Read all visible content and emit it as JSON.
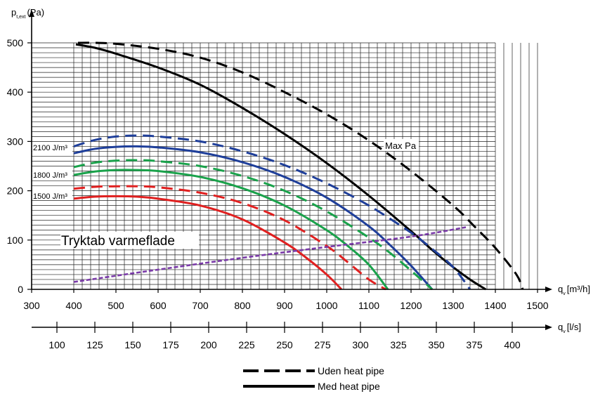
{
  "chart_data": {
    "type": "line",
    "y_axis": {
      "label_main": "p",
      "label_sub": "t,ext",
      "label_unit": "(Pa)",
      "range": [
        0,
        500
      ],
      "ticks": [
        0,
        100,
        200,
        300,
        400,
        500
      ]
    },
    "x_axis": {
      "label_main": "q",
      "label_sub": "v",
      "label_unit": "[m³/h]",
      "range": [
        300,
        1500
      ],
      "ticks": [
        300,
        400,
        500,
        600,
        700,
        800,
        900,
        1000,
        1100,
        1200,
        1300,
        1400,
        1500
      ]
    },
    "x2_axis": {
      "label_main": "q",
      "label_sub": "v",
      "label_unit": "[l/s]",
      "ticks": [
        100,
        125,
        150,
        175,
        200,
        225,
        250,
        275,
        300,
        325,
        350,
        375,
        400
      ]
    },
    "grid": true,
    "series": [
      {
        "name": "Max Pa",
        "group": "Uden heat pipe",
        "color": "#000000",
        "style": "dashed",
        "x": [
          410,
          450,
          500,
          600,
          700,
          800,
          900,
          1000,
          1100,
          1200,
          1300,
          1350,
          1400,
          1450,
          1465
        ],
        "y": [
          500,
          500,
          498,
          488,
          470,
          440,
          400,
          355,
          302,
          240,
          170,
          128,
          84,
          30,
          0
        ]
      },
      {
        "name": "Max Pa",
        "group": "Med heat pipe",
        "color": "#000000",
        "style": "solid",
        "x": [
          405,
          450,
          500,
          600,
          700,
          800,
          900,
          1000,
          1100,
          1200,
          1250,
          1300,
          1340,
          1377
        ],
        "y": [
          497,
          490,
          478,
          450,
          415,
          368,
          315,
          256,
          190,
          118,
          80,
          45,
          20,
          0
        ]
      },
      {
        "name": "2100 J/m³",
        "group": "Uden heat pipe",
        "color": "#1f3f9a",
        "style": "dashed",
        "x": [
          400,
          450,
          500,
          550,
          600,
          700,
          800,
          900,
          1000,
          1100,
          1200,
          1250,
          1300,
          1340
        ],
        "y": [
          290,
          303,
          310,
          312,
          310,
          300,
          280,
          252,
          215,
          170,
          115,
          82,
          45,
          0
        ]
      },
      {
        "name": "2100 J/m³",
        "group": "Med heat pipe",
        "color": "#1f3f9a",
        "style": "solid",
        "x": [
          400,
          450,
          500,
          550,
          600,
          700,
          800,
          900,
          1000,
          1100,
          1150,
          1200,
          1250
        ],
        "y": [
          276,
          285,
          289,
          290,
          288,
          278,
          258,
          228,
          186,
          128,
          90,
          48,
          0
        ]
      },
      {
        "name": "1800 J/m³",
        "group": "Uden heat pipe",
        "color": "#1aa24b",
        "style": "dashed",
        "x": [
          400,
          450,
          500,
          550,
          600,
          700,
          800,
          900,
          1000,
          1100,
          1150,
          1200,
          1250
        ],
        "y": [
          248,
          257,
          261,
          262,
          260,
          250,
          230,
          200,
          158,
          105,
          74,
          38,
          0
        ]
      },
      {
        "name": "1800 J/m³",
        "group": "Med heat pipe",
        "color": "#1aa24b",
        "style": "solid",
        "x": [
          400,
          450,
          500,
          550,
          600,
          700,
          800,
          900,
          1000,
          1050,
          1100,
          1145
        ],
        "y": [
          232,
          239,
          242,
          242,
          240,
          228,
          205,
          170,
          120,
          88,
          50,
          0
        ]
      },
      {
        "name": "1500 J/m³",
        "group": "Uden heat pipe",
        "color": "#e02020",
        "style": "dashed",
        "x": [
          400,
          450,
          500,
          550,
          600,
          700,
          800,
          900,
          1000,
          1050,
          1100,
          1140
        ],
        "y": [
          204,
          208,
          209,
          209,
          207,
          196,
          175,
          140,
          88,
          55,
          20,
          0
        ]
      },
      {
        "name": "1500 J/m³",
        "group": "Med heat pipe",
        "color": "#e02020",
        "style": "solid",
        "x": [
          400,
          450,
          500,
          550,
          600,
          700,
          800,
          900,
          950,
          1000,
          1035
        ],
        "y": [
          184,
          188,
          189,
          188,
          184,
          170,
          142,
          95,
          65,
          30,
          0
        ]
      },
      {
        "name": "Tryktab varmeflade",
        "group": "",
        "color": "#7a3aa8",
        "style": "dotted",
        "x": [
          400,
          600,
          800,
          1000,
          1200,
          1330
        ],
        "y": [
          15,
          40,
          64,
          86,
          107,
          126
        ]
      }
    ],
    "annotations": {
      "max_pa": "Max Pa",
      "j2100": "2100 J/m³",
      "j1800": "1800 J/m³",
      "j1500": "1500 J/m³",
      "tryktab": "Tryktab varmeflade"
    },
    "legend": {
      "placement": "bottom-center",
      "entries": [
        {
          "label": "Uden heat pipe",
          "style": "dashed",
          "color": "#000000"
        },
        {
          "label": "Med heat pipe",
          "style": "solid",
          "color": "#000000"
        }
      ]
    }
  }
}
